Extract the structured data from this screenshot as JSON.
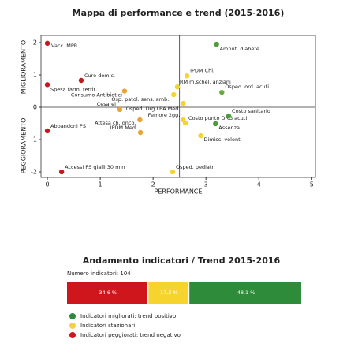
{
  "chart_data": [
    {
      "type": "scatter",
      "title": "Mappa di performance e trend (2015-2016)",
      "x_label": "PERFORMANCE",
      "y_label_top": "MIGLIORAMENTO",
      "y_label_bottom": "PEGGIORAMENTO",
      "xlim": [
        -0.12,
        5.07
      ],
      "ylim": [
        -2.17,
        2.22
      ],
      "xticks": [
        0,
        1,
        2,
        3,
        4,
        5
      ],
      "yticks": [
        -2,
        -1,
        0,
        1,
        2
      ],
      "vline": 2.5,
      "hline": 0,
      "labels": [
        "Vacc. MPR",
        "Cure domic.",
        "Spesa farm. territ.",
        "Abbandoni PS",
        "Accessi PS gialli 30 min",
        "Amput. diabete",
        "IPDM Chi.",
        "RM m.schel. anziani",
        "Osped. ord. acuti",
        "Consumo Antibiotici",
        "Osp. patol. sens. amb.",
        "Cesarei",
        "Osped. Drg LEA Med",
        "Femore 2gg.",
        "Costo punto DRG acuti",
        "Costo sanitario",
        "Assenza",
        "Dimiss. volont.",
        "Attesa ch. onco.",
        "IPDM Med.",
        "Osped. pediatr."
      ],
      "x": [
        0,
        0.64,
        0,
        0,
        0.27,
        3.2,
        2.64,
        2.46,
        3.3,
        1.46,
        2.39,
        1.37,
        2.57,
        2.57,
        2.61,
        3.43,
        3.18,
        2.9,
        1.75,
        1.76,
        2.37
      ],
      "values": [
        1.98,
        0.83,
        0.7,
        -0.73,
        -2.0,
        1.95,
        0.97,
        0.63,
        0.46,
        0.5,
        0.39,
        -0.07,
        0.12,
        -0.39,
        -0.49,
        -0.27,
        -0.51,
        -0.88,
        -0.39,
        -0.78,
        -2.0
      ],
      "colors": [
        "#c8161d",
        "#c8161d",
        "#c8161d",
        "#c8161d",
        "#c8161d",
        "#4d9e3a",
        "#f6d32d",
        "#f6d32d",
        "#6aaa3a",
        "#e8a335",
        "#f6d32d",
        "#e8a335",
        "#f6d32d",
        "#f6d32d",
        "#f6d32d",
        "#4d9e3a",
        "#4d9e3a",
        "#f6d32d",
        "#e8a335",
        "#e8a335",
        "#f6d32d"
      ]
    },
    {
      "type": "stacked_bar",
      "title": "Andamento indicatori / Trend 2015-2016",
      "subtitle": "Numero indicatori: 104",
      "xlim": [
        0,
        100
      ],
      "series": [
        {
          "name": "Indicatori peggiorati: trend negativo",
          "color": "#d0161d",
          "values": [
            34.6
          ],
          "value_labels": [
            "34.6 %"
          ]
        },
        {
          "name": "Indicatori stazionari",
          "color": "#f6d32d",
          "values": [
            17.3
          ],
          "value_labels": [
            "17.3 %"
          ]
        },
        {
          "name": "Indicatori migliorati: trend positivo",
          "color": "#2e8b3a",
          "values": [
            48.1
          ],
          "value_labels": [
            "48.1 %"
          ]
        }
      ]
    }
  ]
}
